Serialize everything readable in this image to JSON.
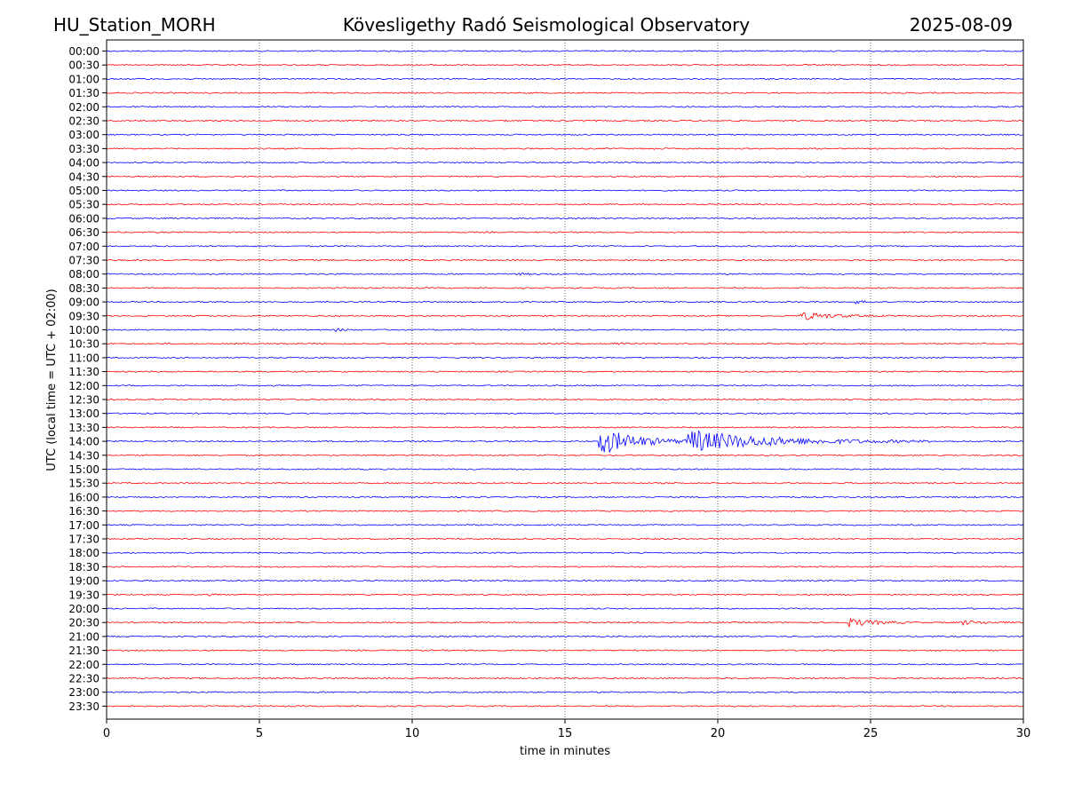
{
  "header": {
    "station": "HU_Station_MORH",
    "observatory": "Kövesligethy Radó Seismological Observatory",
    "date": "2025-08-09"
  },
  "chart_data": {
    "type": "line",
    "title": "Kövesligethy Radó Seismological Observatory",
    "xlabel": "time in minutes",
    "ylabel": "UTC (local time = UTC + 02:00)",
    "xlim": [
      0,
      30
    ],
    "x_ticks": [
      "0",
      "5",
      "10",
      "15",
      "20",
      "25",
      "30"
    ],
    "grid_x": true,
    "row_labels": [
      "00:00",
      "00:30",
      "01:00",
      "01:30",
      "02:00",
      "02:30",
      "03:00",
      "03:30",
      "04:00",
      "04:30",
      "05:00",
      "05:30",
      "06:00",
      "06:30",
      "07:00",
      "07:30",
      "08:00",
      "08:30",
      "09:00",
      "09:30",
      "10:00",
      "10:30",
      "11:00",
      "11:30",
      "12:00",
      "12:30",
      "13:00",
      "13:30",
      "14:00",
      "14:30",
      "15:00",
      "15:30",
      "16:00",
      "16:30",
      "17:00",
      "17:30",
      "18:00",
      "18:30",
      "19:00",
      "19:30",
      "20:00",
      "20:30",
      "21:00",
      "21:30",
      "22:00",
      "22:30",
      "23:00",
      "23:30"
    ],
    "trace_colors": [
      "#0000ff",
      "#ff0000"
    ],
    "events": [
      {
        "row": "03:30",
        "start_min": 17.9,
        "duration_min": 0.6,
        "amplitude": 0.15
      },
      {
        "row": "07:00",
        "start_min": 4.2,
        "duration_min": 1.0,
        "amplitude": 0.12
      },
      {
        "row": "08:00",
        "start_min": 13.3,
        "duration_min": 1.6,
        "amplitude": 0.2
      },
      {
        "row": "09:00",
        "start_min": 24.5,
        "duration_min": 1.0,
        "amplitude": 0.35
      },
      {
        "row": "09:30",
        "start_min": 22.7,
        "duration_min": 3.0,
        "amplitude": 0.9
      },
      {
        "row": "10:00",
        "start_min": 7.5,
        "duration_min": 0.8,
        "amplitude": 0.3
      },
      {
        "row": "10:30",
        "start_min": 16.6,
        "duration_min": 0.6,
        "amplitude": 0.4
      },
      {
        "row": "14:00",
        "start_min": 16.1,
        "duration_min": 3.5,
        "amplitude": 3.2
      },
      {
        "row": "14:00",
        "start_min": 19.0,
        "duration_min": 8.0,
        "amplitude": 2.5
      },
      {
        "row": "14:30",
        "start_min": 12.8,
        "duration_min": 0.5,
        "amplitude": 0.2
      },
      {
        "row": "19:30",
        "start_min": 3.3,
        "duration_min": 0.6,
        "amplitude": 0.15
      },
      {
        "row": "20:30",
        "start_min": 24.3,
        "duration_min": 2.5,
        "amplitude": 0.9
      },
      {
        "row": "20:30",
        "start_min": 28.0,
        "duration_min": 2.0,
        "amplitude": 0.5
      },
      {
        "row": "21:00",
        "start_min": 5.2,
        "duration_min": 0.5,
        "amplitude": 0.15
      }
    ]
  }
}
